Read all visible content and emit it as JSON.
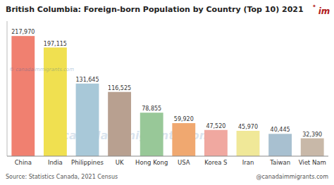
{
  "chart_data": {
    "type": "bar",
    "title": "British Columbia: Foreign-born Population by Country (Top 10) 2021",
    "categories": [
      "China",
      "India",
      "Philippines",
      "UK",
      "Hong Kong",
      "USA",
      "Korea S",
      "Iran",
      "Taiwan",
      "Viet Nam"
    ],
    "values": [
      217970,
      197115,
      131645,
      116525,
      78855,
      59920,
      47520,
      45970,
      40445,
      32390
    ],
    "value_labels": [
      "217,970",
      "197,115",
      "131,645",
      "116,525",
      "78,855",
      "59,920",
      "47,520",
      "45,970",
      "40,445",
      "32,390"
    ],
    "colors": [
      "#F08070",
      "#F0E050",
      "#A8C8D8",
      "#B8A090",
      "#98C898",
      "#F0A870",
      "#F0A8A0",
      "#F0E898",
      "#A8C0D0",
      "#C8B8A8"
    ],
    "ylim": [
      0,
      245000
    ],
    "data_labels": true,
    "tick_labels": "x",
    "grid": false,
    "annotations": [
      "Source: Statistics Canada, 2021 Census",
      "@canadaimmigrants.com",
      "© canadaimmigrants.com",
      "© canadaimmigrants.com",
      "✦",
      "im"
    ]
  }
}
